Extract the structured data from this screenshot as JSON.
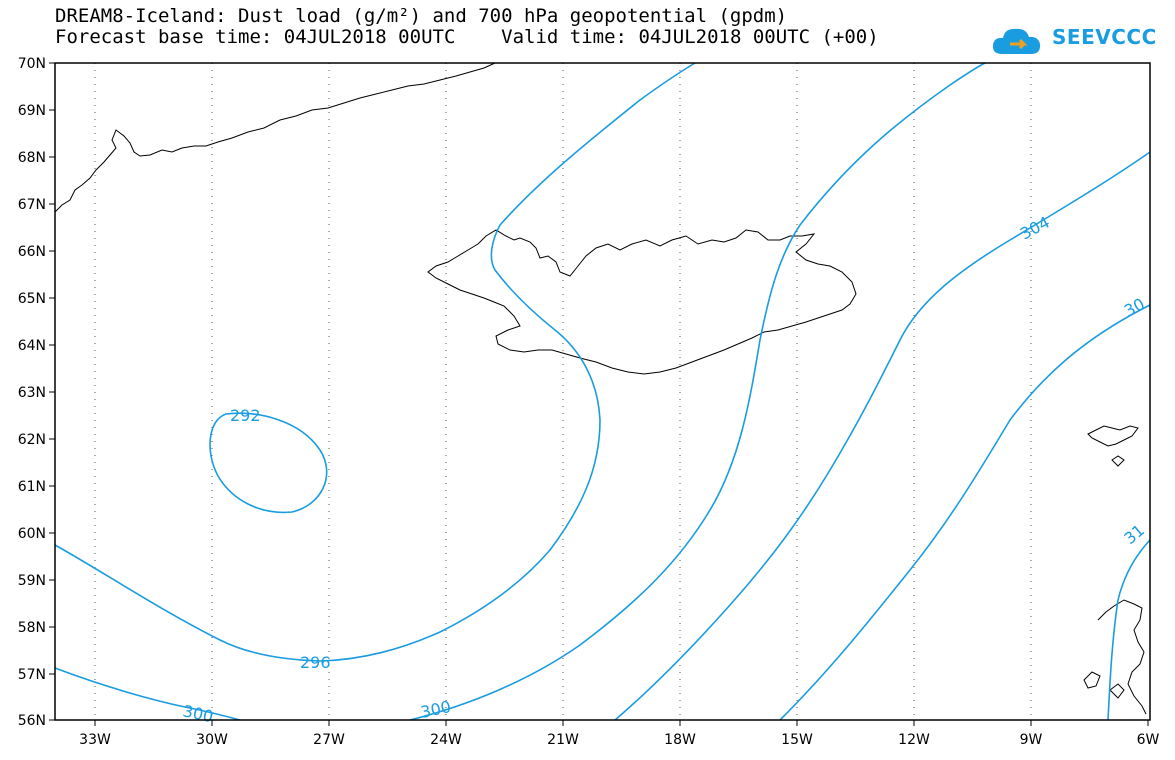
{
  "header": {
    "title": "DREAM8-Iceland: Dust load (g/m²) and 700 hPa geopotential (gpdm)",
    "base_label": "Forecast base time:",
    "base_time": "04JUL2018 00UTC",
    "valid_label": "Valid time:",
    "valid_time": "04JUL2018 00UTC (+00)"
  },
  "logo": {
    "text": "SEEVCCC",
    "icon": "cloud-arrow-icon",
    "color": "#1a9ce0"
  },
  "map": {
    "lon_labels": [
      "33W",
      "30W",
      "27W",
      "24W",
      "21W",
      "18W",
      "15W",
      "12W",
      "9W",
      "6W"
    ],
    "lat_labels": [
      "70N",
      "69N",
      "68N",
      "67N",
      "66N",
      "65N",
      "64N",
      "63N",
      "62N",
      "61N",
      "60N",
      "59N",
      "58N",
      "57N",
      "56N"
    ],
    "contour_color": "#1a9ce0",
    "contour_labels": [
      "292",
      "296",
      "300",
      "300",
      "304",
      "30",
      "31"
    ]
  }
}
